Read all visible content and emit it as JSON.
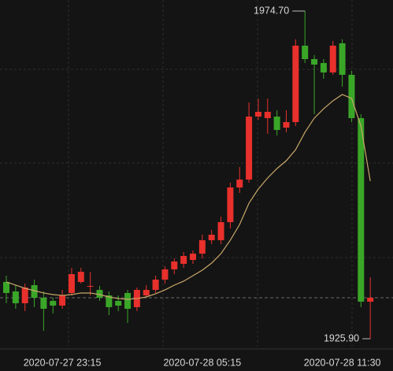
{
  "chart_data": {
    "type": "candlestick",
    "categories": [
      null,
      null,
      null,
      null,
      null,
      null,
      "2020-07-27 23:15",
      null,
      null,
      null,
      null,
      null,
      null,
      null,
      null,
      null,
      null,
      null,
      null,
      null,
      null,
      "2020-07-28 05:15",
      null,
      null,
      null,
      null,
      null,
      null,
      null,
      null,
      null,
      null,
      null,
      null,
      null,
      null,
      "2020-07-28 11:30",
      null,
      null,
      null
    ],
    "open": [
      1934.35,
      1932.94,
      1931.18,
      1933.88,
      1932.0,
      1931.53,
      1930.83,
      1932.71,
      1934.35,
      1933.64,
      1933.17,
      1932.35,
      1931.53,
      1932.71,
      1930.6,
      1932.35,
      1933.17,
      1934.7,
      1936.23,
      1937.05,
      1937.63,
      1938.57,
      1940.57,
      1940.57,
      1943.26,
      1948.42,
      1949.6,
      1958.98,
      1958.75,
      1958.98,
      1957.34,
      1958.16,
      1969.54,
      1967.54,
      1966.96,
      1965.55,
      1969.89,
      1965.2,
      1958.75,
      1931.42
    ],
    "close": [
      1932.71,
      1931.18,
      1933.53,
      1932.0,
      1930.36,
      1930.83,
      1932.35,
      1935.52,
      1935.87,
      1933.76,
      1932.0,
      1930.6,
      1930.83,
      1930.36,
      1933.17,
      1933.17,
      1934.7,
      1936.23,
      1937.4,
      1938.22,
      1938.57,
      1940.57,
      1941.39,
      1943.26,
      1948.42,
      1949.6,
      1958.98,
      1959.69,
      1959.69,
      1956.99,
      1958.16,
      1969.54,
      1967.54,
      1966.72,
      1965.55,
      1969.54,
      1965.2,
      1958.75,
      1931.42,
      1932.0
    ],
    "high": [
      1935.29,
      1933.88,
      1934.11,
      1934.7,
      1932.94,
      1932.0,
      1933.17,
      1936.46,
      1936.46,
      1935.87,
      1933.76,
      1932.94,
      1932.35,
      1933.17,
      1933.53,
      1933.88,
      1935.29,
      1936.69,
      1937.87,
      1938.81,
      1939.04,
      1941.39,
      1942.09,
      1944.08,
      1949.13,
      1951.47,
      1961.09,
      1961.68,
      1961.68,
      1959.92,
      1959.92,
      1970.48,
      1974.7,
      1968.13,
      1967.54,
      1970.24,
      1970.48,
      1965.78,
      1959.33,
      1935.05
    ],
    "low": [
      1931.18,
      1930.36,
      1930.01,
      1930.6,
      1927.07,
      1929.66,
      1930.36,
      1932.35,
      1934.11,
      1932.35,
      1931.53,
      1929.42,
      1930.01,
      1928.25,
      1930.01,
      1932.0,
      1932.71,
      1934.11,
      1935.52,
      1936.46,
      1937.05,
      1937.87,
      1939.98,
      1939.98,
      1942.32,
      1947.6,
      1949.13,
      1958.51,
      1956.4,
      1956.17,
      1956.64,
      1957.57,
      1966.96,
      1959.33,
      1964.61,
      1965.2,
      1963.44,
      1958.16,
      1930.6,
      1925.9
    ],
    "ma": [
      1934.35,
      1933.88,
      1933.41,
      1933.06,
      1932.71,
      1932.47,
      1932.35,
      1932.47,
      1932.71,
      1932.71,
      1932.47,
      1932.12,
      1931.88,
      1931.77,
      1931.88,
      1932.12,
      1932.59,
      1933.17,
      1933.88,
      1934.47,
      1935.29,
      1936.11,
      1937.16,
      1938.57,
      1940.57,
      1942.91,
      1946.08,
      1948.19,
      1949.83,
      1951.24,
      1952.41,
      1954.05,
      1956.64,
      1958.75,
      1960.15,
      1961.33,
      1962.27,
      1961.68,
      1957.57,
      1949.37
    ],
    "up_color": "#e8302c",
    "down_color": "#3aa628",
    "ma_color": "#c9a86a",
    "ylim": [
      1924.73,
      1976.34
    ],
    "grid": true,
    "max_label": {
      "value": 1974.7,
      "label": "1974.70"
    },
    "min_label": {
      "value": 1925.9,
      "label": "1925.90"
    }
  }
}
